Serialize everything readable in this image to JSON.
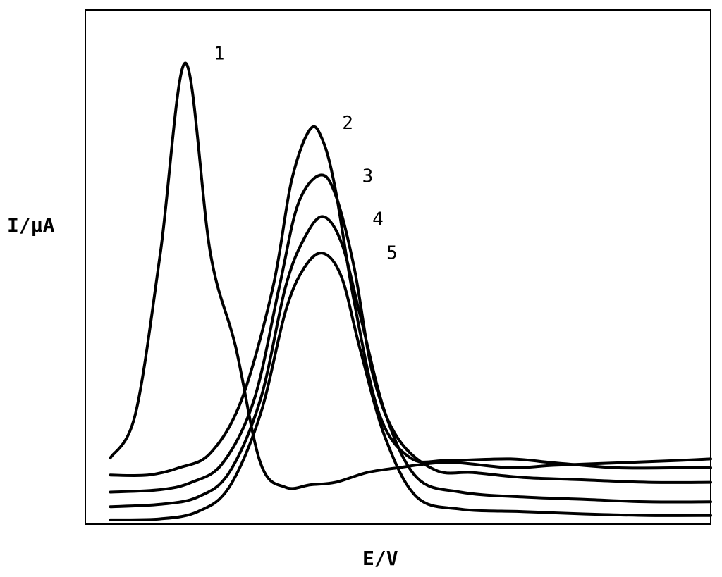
{
  "chart_data": {
    "type": "line",
    "title": "",
    "xlabel": "E/V",
    "ylabel": "I/μA",
    "grid": false,
    "legend": "none",
    "line_color": "#000000",
    "x_units_note": "",
    "xlim": [
      0,
      100
    ],
    "ylim": [
      0,
      100
    ],
    "series": [
      {
        "name": "1",
        "points": [
          [
            4,
            13
          ],
          [
            8,
            22
          ],
          [
            12,
            55
          ],
          [
            16,
            94
          ],
          [
            20,
            55
          ],
          [
            24,
            36
          ],
          [
            28,
            12
          ],
          [
            32,
            7
          ],
          [
            36,
            7.5
          ],
          [
            40,
            8
          ],
          [
            45,
            10
          ],
          [
            50,
            11
          ],
          [
            56,
            12
          ],
          [
            60,
            12
          ],
          [
            68,
            11
          ],
          [
            75,
            11.5
          ],
          [
            85,
            12
          ],
          [
            95,
            12.5
          ],
          [
            100,
            12.8
          ]
        ]
      },
      {
        "name": "2",
        "points": [
          [
            4,
            9.5
          ],
          [
            10,
            9.5
          ],
          [
            15,
            11
          ],
          [
            20,
            14
          ],
          [
            25,
            25
          ],
          [
            30,
            48
          ],
          [
            33,
            70
          ],
          [
            36,
            80.5
          ],
          [
            38,
            78
          ],
          [
            40,
            68
          ],
          [
            43,
            45
          ],
          [
            47,
            22
          ],
          [
            52,
            13
          ],
          [
            58,
            12.5
          ],
          [
            68,
            12.8
          ],
          [
            75,
            12
          ],
          [
            85,
            11
          ],
          [
            95,
            11
          ],
          [
            100,
            11
          ]
        ]
      },
      {
        "name": "3",
        "points": [
          [
            4,
            6
          ],
          [
            12,
            6.5
          ],
          [
            17,
            8
          ],
          [
            22,
            12
          ],
          [
            27,
            25
          ],
          [
            31,
            48
          ],
          [
            34,
            65
          ],
          [
            37.5,
            71
          ],
          [
            40,
            67
          ],
          [
            43,
            52
          ],
          [
            46,
            30
          ],
          [
            50,
            17
          ],
          [
            56,
            10.5
          ],
          [
            62,
            10
          ],
          [
            70,
            9
          ],
          [
            80,
            8.5
          ],
          [
            90,
            8
          ],
          [
            100,
            8
          ]
        ]
      },
      {
        "name": "4",
        "points": [
          [
            4,
            3
          ],
          [
            12,
            3.5
          ],
          [
            18,
            5
          ],
          [
            23,
            10
          ],
          [
            28,
            25
          ],
          [
            32,
            48
          ],
          [
            35,
            58
          ],
          [
            38,
            62.5
          ],
          [
            41,
            57
          ],
          [
            44,
            42
          ],
          [
            48,
            22
          ],
          [
            53,
            9
          ],
          [
            60,
            6
          ],
          [
            70,
            5
          ],
          [
            80,
            4.5
          ],
          [
            90,
            4
          ],
          [
            100,
            4
          ]
        ]
      },
      {
        "name": "5",
        "points": [
          [
            4,
            0.3
          ],
          [
            12,
            0.5
          ],
          [
            18,
            2
          ],
          [
            23,
            7
          ],
          [
            28,
            22
          ],
          [
            32,
            43
          ],
          [
            35,
            52
          ],
          [
            38,
            55
          ],
          [
            41,
            50
          ],
          [
            44,
            35
          ],
          [
            48,
            17
          ],
          [
            53,
            5
          ],
          [
            60,
            2.5
          ],
          [
            70,
            2
          ],
          [
            80,
            1.5
          ],
          [
            90,
            1.2
          ],
          [
            100,
            1.2
          ]
        ]
      }
    ],
    "series_labels": [
      {
        "text": "1"
      },
      {
        "text": "2"
      },
      {
        "text": "3"
      },
      {
        "text": "4"
      },
      {
        "text": "5"
      }
    ]
  }
}
